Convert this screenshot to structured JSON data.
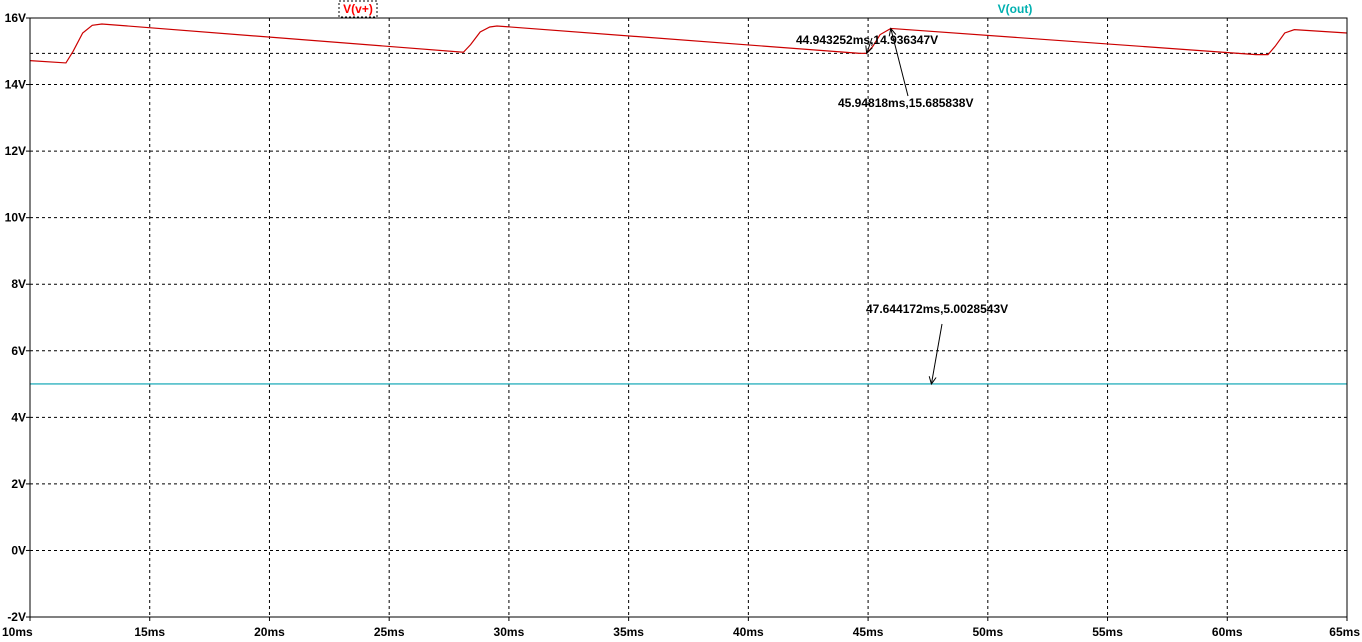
{
  "chart_data": {
    "type": "line",
    "title": "",
    "xlabel": "",
    "ylabel": "",
    "xlim": [
      10,
      65
    ],
    "ylim": [
      -2,
      16
    ],
    "grid": true,
    "x_ticks": [
      10,
      15,
      20,
      25,
      30,
      35,
      40,
      45,
      50,
      55,
      60,
      65
    ],
    "x_tick_labels": [
      "10ms",
      "15ms",
      "20ms",
      "25ms",
      "30ms",
      "35ms",
      "40ms",
      "45ms",
      "50ms",
      "55ms",
      "60ms",
      "65ms"
    ],
    "y_ticks": [
      -2,
      0,
      2,
      4,
      6,
      8,
      10,
      12,
      14,
      16
    ],
    "y_tick_labels": [
      "-2V",
      "0V",
      "2V",
      "4V",
      "6V",
      "8V",
      "10V",
      "12V",
      "14V",
      "16V"
    ],
    "legend": [
      {
        "name": "V(v+)",
        "color": "#ff0000",
        "boxed": true
      },
      {
        "name": "V(out)",
        "color": "#00b0b0",
        "boxed": false
      }
    ],
    "series": [
      {
        "name": "V(v+)",
        "color": "#cc0000",
        "x": [
          10.0,
          11.5,
          11.8,
          12.2,
          12.6,
          13.0,
          28.1,
          28.4,
          28.8,
          29.2,
          29.5,
          44.6,
          44.94,
          45.2,
          45.5,
          45.95,
          61.2,
          61.7,
          62.0,
          62.4,
          62.8,
          65.0
        ],
        "y": [
          14.72,
          14.65,
          15.0,
          15.55,
          15.78,
          15.82,
          14.97,
          15.2,
          15.58,
          15.73,
          15.76,
          14.94,
          14.936,
          15.15,
          15.5,
          15.686,
          14.9,
          14.9,
          15.15,
          15.55,
          15.65,
          15.55
        ]
      },
      {
        "name": "V(out)",
        "color": "#00a0b0",
        "x": [
          10.0,
          65.0
        ],
        "y": [
          5.0028543,
          5.0028543
        ]
      }
    ],
    "reference_lines": [
      {
        "orientation": "horizontal",
        "y": 14.936347,
        "style": "dashed"
      }
    ],
    "annotations": [
      {
        "text": "44.943252ms,14.936347V",
        "x": 44.943252,
        "y": 14.936347
      },
      {
        "text": "45.94818ms,15.685838V",
        "x": 45.94818,
        "y": 15.685838
      },
      {
        "text": "47.644172ms,5.0028543V",
        "x": 47.644172,
        "y": 5.0028543
      }
    ]
  }
}
